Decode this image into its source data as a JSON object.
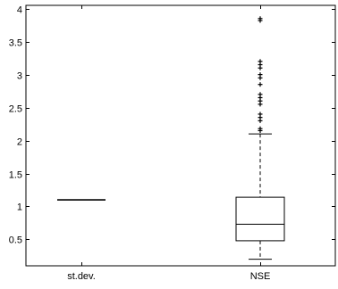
{
  "chart_data": {
    "type": "box",
    "categories": [
      "st.dev.",
      "NSE"
    ],
    "ylim": [
      0.1,
      4.05
    ],
    "yticks": [
      0.5,
      1,
      1.5,
      2,
      2.5,
      3,
      3.5,
      4
    ],
    "ytick_labels": [
      "0.5",
      "1",
      "1.5",
      "2",
      "2.5",
      "3",
      "3.5",
      "4"
    ],
    "boxes": [
      {
        "category": "st.dev.",
        "whisker_low": 1.1,
        "q1": 1.1,
        "median": 1.1,
        "q3": 1.1,
        "whisker_high": 1.1,
        "outliers": []
      },
      {
        "category": "NSE",
        "whisker_low": 0.2,
        "q1": 0.48,
        "median": 0.73,
        "q3": 1.14,
        "whisker_high": 2.1,
        "outliers": [
          2.15,
          2.18,
          2.3,
          2.35,
          2.4,
          2.55,
          2.6,
          2.65,
          2.7,
          2.85,
          2.95,
          3.0,
          3.1,
          3.15,
          3.2,
          3.82,
          3.85
        ]
      }
    ],
    "grid": false,
    "colors": {
      "axis": "#000000",
      "box": "#000000",
      "outlier": "#000000"
    }
  }
}
